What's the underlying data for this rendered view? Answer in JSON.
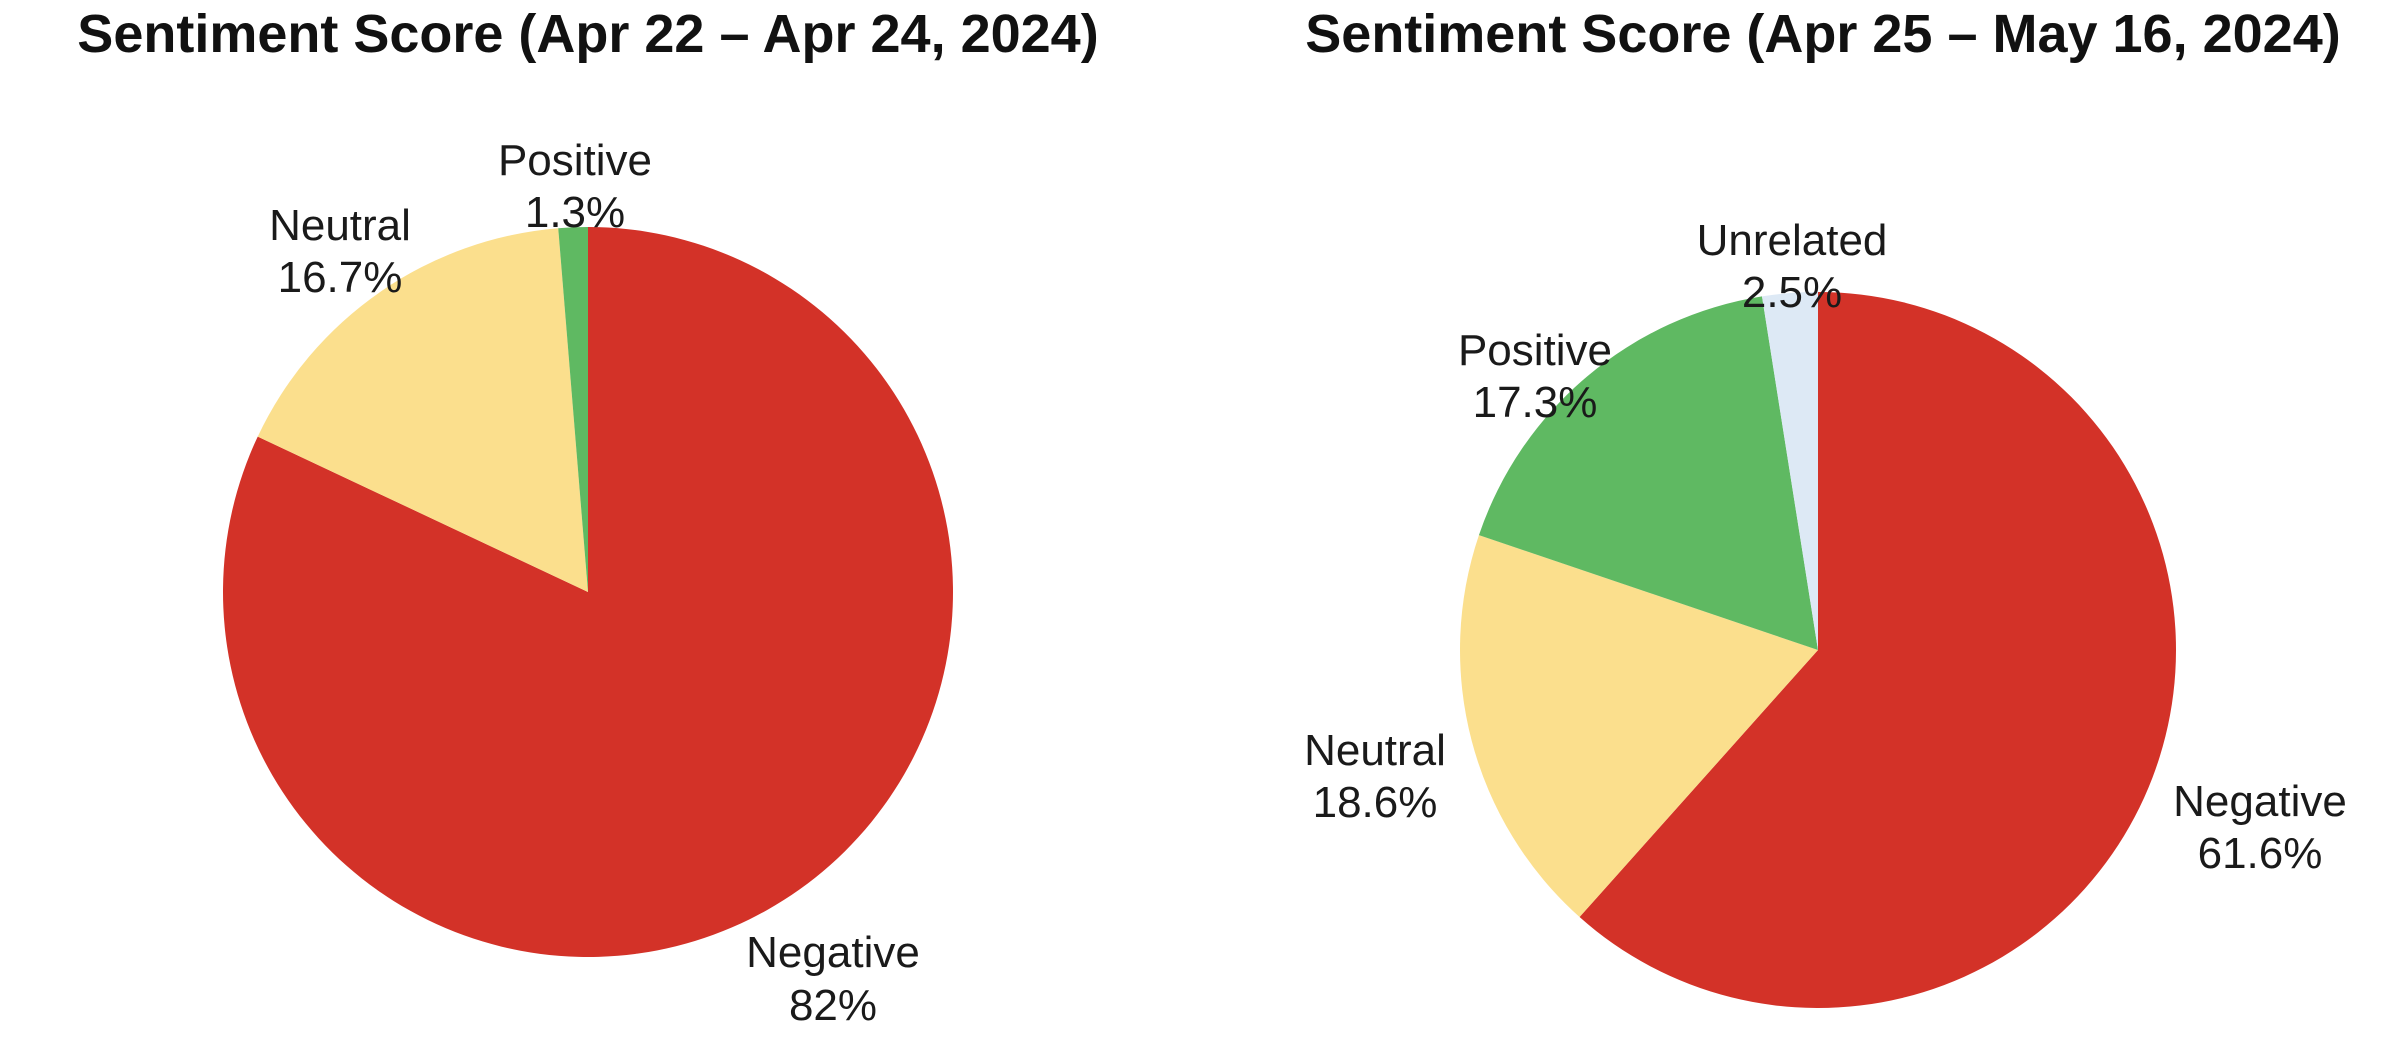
{
  "colors": {
    "background": "#ffffff",
    "text": "#111111",
    "negative": "#d33228",
    "neutral": "#fbdf8d",
    "positive": "#5fb962",
    "unrelated": "#dde9f5"
  },
  "chart_data": [
    {
      "type": "pie",
      "title": "Sentiment Score (Apr 22 – Apr 24, 2024)",
      "start_angle": "12 o'clock",
      "direction": "clockwise",
      "legend": "none",
      "labels_position": "outside",
      "slices": [
        {
          "label": "Negative",
          "value": 82,
          "display": "82%",
          "color": "#d33228"
        },
        {
          "label": "Neutral",
          "value": 16.7,
          "display": "16.7%",
          "color": "#fbdf8d"
        },
        {
          "label": "Positive",
          "value": 1.3,
          "display": "1.3%",
          "color": "#5fb962"
        }
      ]
    },
    {
      "type": "pie",
      "title": "Sentiment Score (Apr 25 – May 16, 2024)",
      "start_angle": "12 o'clock",
      "direction": "clockwise",
      "legend": "none",
      "labels_position": "outside",
      "slices": [
        {
          "label": "Negative",
          "value": 61.6,
          "display": "61.6%",
          "color": "#d33228"
        },
        {
          "label": "Neutral",
          "value": 18.6,
          "display": "18.6%",
          "color": "#fbdf8d"
        },
        {
          "label": "Positive",
          "value": 17.3,
          "display": "17.3%",
          "color": "#5fb962"
        },
        {
          "label": "Unrelated",
          "value": 2.5,
          "display": "2.5%",
          "color": "#dde9f5"
        }
      ]
    }
  ]
}
